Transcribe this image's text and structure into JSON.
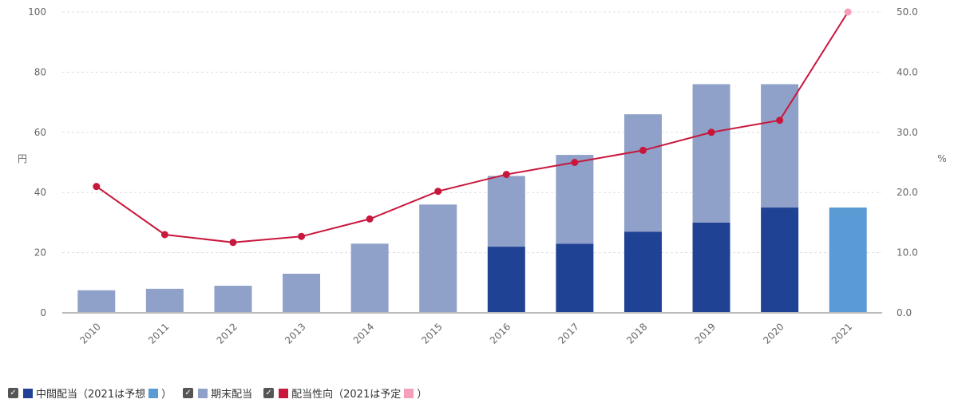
{
  "chart_data": {
    "type": "bar",
    "categories": [
      "2010",
      "2011",
      "2012",
      "2013",
      "2014",
      "2015",
      "2016",
      "2017",
      "2018",
      "2019",
      "2020",
      "2021"
    ],
    "series": [
      {
        "name": "中間配当",
        "kind": "bar-stacked",
        "axis": "left",
        "color": "#1f4294",
        "forecast_color": "#5b9bd5",
        "values": [
          0,
          0,
          0,
          0,
          0,
          0,
          22,
          23,
          27,
          30,
          35,
          35
        ],
        "forecast_index": 11
      },
      {
        "name": "期末配当",
        "kind": "bar-stacked",
        "axis": "left",
        "color": "#8fa1c9",
        "values": [
          7.5,
          8,
          9,
          13,
          23,
          36,
          23.5,
          29.5,
          39,
          46,
          41,
          0
        ]
      },
      {
        "name": "配当性向",
        "kind": "line",
        "axis": "right",
        "color": "#c8173c",
        "forecast_color": "#f5a0b8",
        "values": [
          21,
          13,
          11.7,
          12.7,
          15.6,
          20.2,
          23,
          25,
          27,
          30,
          32,
          50
        ],
        "forecast_index": 11
      }
    ],
    "y_left": {
      "label": "円",
      "ylim": [
        0,
        100
      ],
      "ticks": [
        "0",
        "20",
        "40",
        "60",
        "80",
        "100"
      ]
    },
    "y_right": {
      "label": "%",
      "ylim": [
        0,
        50
      ],
      "ticks": [
        "0.0",
        "10.0",
        "20.0",
        "30.0",
        "40.0",
        "50.0"
      ]
    },
    "grid": true,
    "legend_position": "bottom-left"
  },
  "legend": {
    "interim": "中間配当（2021は予想",
    "interim_close": "）",
    "year_end": "期末配当",
    "payout": "配当性向（2021は予定",
    "payout_close": "）",
    "check_glyph": "✓"
  }
}
